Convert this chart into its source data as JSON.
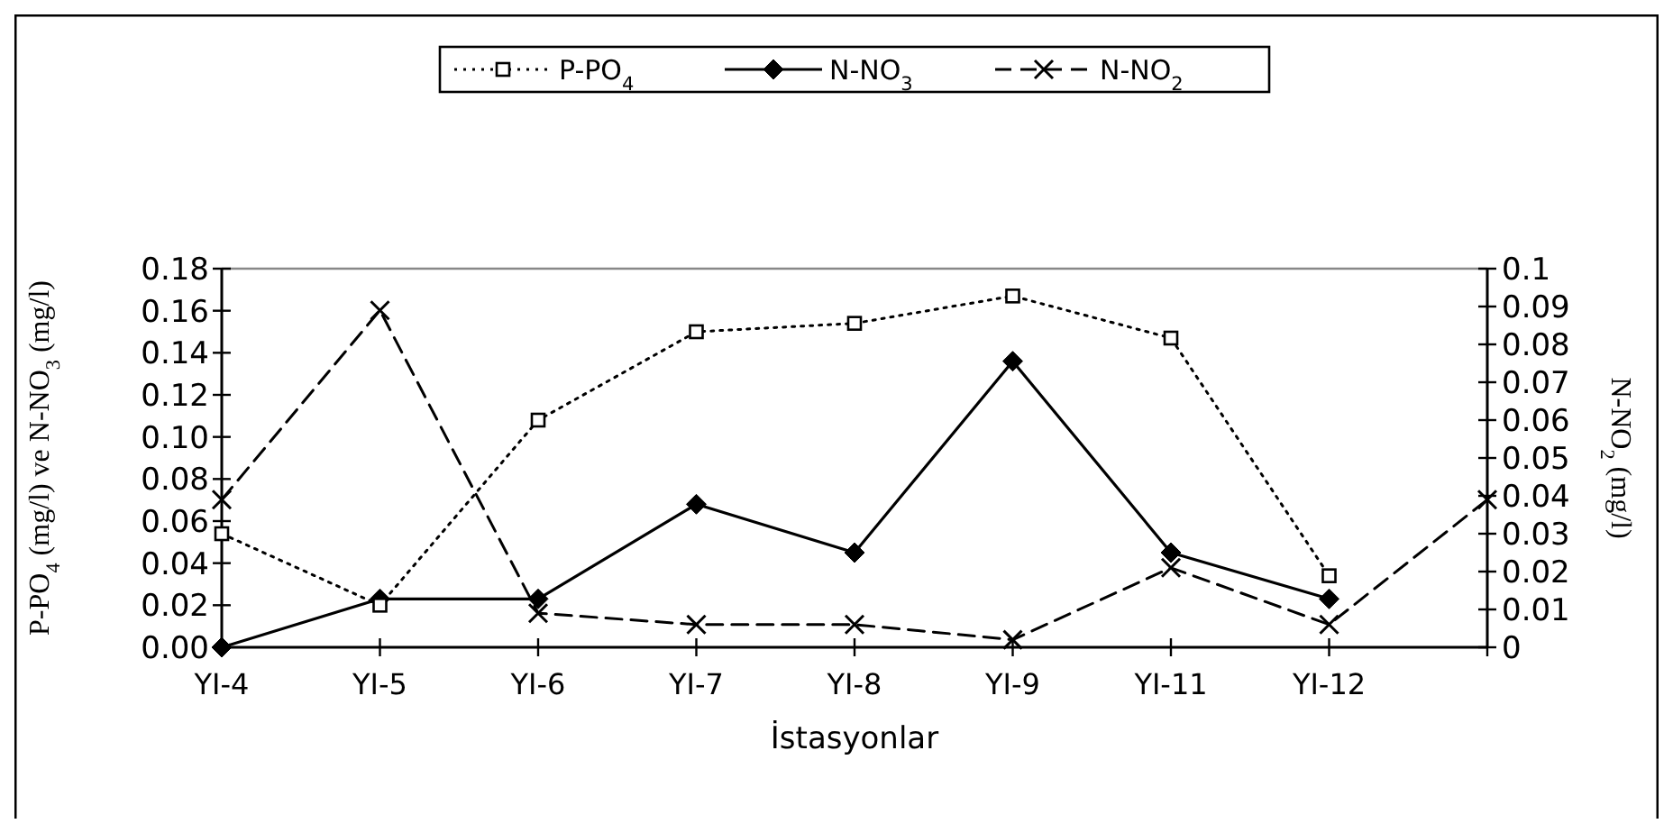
{
  "chart_data": {
    "type": "line",
    "xlabel": "İstasyonlar",
    "ylabel": "P-PO$_{4}$ (mg/l) ve N-NO$_{3}$ (mg/l)",
    "y2label": "N-NO$_{2}$ (mg/l)",
    "categories": [
      "YI-4",
      "YI-5",
      "YI-6",
      "YI-7",
      "YI-8",
      "YI-9",
      "YI-11",
      "YI-12",
      null
    ],
    "ylim": [
      0,
      0.18
    ],
    "yticks": [
      {
        "value": 0,
        "label": "0.00"
      },
      {
        "value": 0.02,
        "label": "0.02"
      },
      {
        "value": 0.04,
        "label": "0.04"
      },
      {
        "value": 0.06,
        "label": "0.06"
      },
      {
        "value": 0.08,
        "label": "0.08"
      },
      {
        "value": 0.1,
        "label": "0.10"
      },
      {
        "value": 0.12,
        "label": "0.12"
      },
      {
        "value": 0.14,
        "label": "0.14"
      },
      {
        "value": 0.16,
        "label": "0.16"
      },
      {
        "value": 0.18,
        "label": "0.18"
      }
    ],
    "y2lim": [
      0,
      0.1
    ],
    "y2ticks": [
      0,
      0.01,
      0.02,
      0.03,
      0.04,
      0.05,
      0.06,
      0.07,
      0.08,
      0.09,
      0.1
    ],
    "legend": "top",
    "grid": false,
    "series": [
      {
        "name": "P-PO$_{4}$",
        "color": "#000000",
        "line_style": "dotted",
        "marker": "square",
        "values": [
          0.054,
          0.02,
          0.108,
          0.15,
          0.154,
          0.167,
          0.147,
          0.034,
          null
        ]
      },
      {
        "name": "N-NO$_{3}$",
        "color": "#000000",
        "line_style": "solid",
        "marker": "diamond",
        "values": [
          0,
          0.023,
          0.023,
          0.068,
          0.045,
          0.136,
          0.045,
          0.023,
          null
        ]
      },
      {
        "name": "N-NO$_{2}$",
        "color": "#000000",
        "line_style": "dashed",
        "marker": "cross",
        "axis": "y2",
        "values": [
          0.039,
          0.089,
          0.009,
          0.006,
          0.006,
          0.002,
          0.021,
          0.006,
          0.039
        ]
      }
    ]
  }
}
